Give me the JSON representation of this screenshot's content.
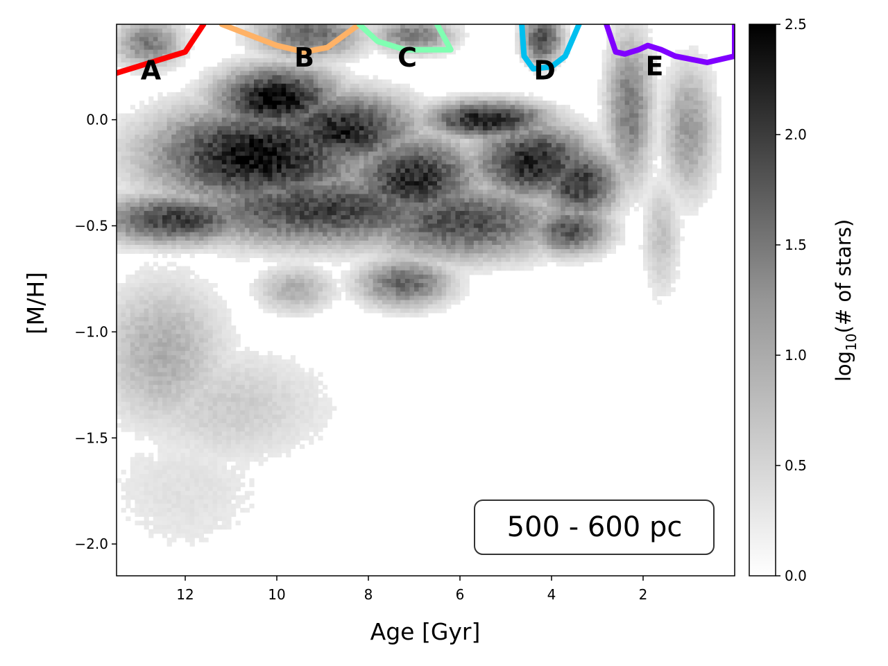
{
  "chart_data": {
    "type": "heatmap",
    "xlabel": "Age [Gyr]",
    "ylabel": "[M/H]",
    "xlim": [
      13.5,
      0.0
    ],
    "ylim": [
      -2.15,
      0.45
    ],
    "x_inverted": true,
    "xticks": [
      12,
      10,
      8,
      6,
      4,
      2
    ],
    "xtick_labels": [
      "12",
      "10",
      "8",
      "6",
      "4",
      "2"
    ],
    "yticks": [
      0.0,
      -0.5,
      -1.0,
      -1.5,
      -2.0
    ],
    "ytick_labels": [
      "0.0",
      "−0.5",
      "−1.0",
      "−1.5",
      "−2.0"
    ],
    "colorbar": {
      "label_main": "log",
      "label_sub": "10",
      "label_rest": "(# of stars)",
      "range": [
        0.0,
        2.5
      ],
      "ticks": [
        0.0,
        0.5,
        1.0,
        1.5,
        2.0,
        2.5
      ],
      "tick_labels": [
        "0.0",
        "0.5",
        "1.0",
        "1.5",
        "2.0",
        "2.5"
      ],
      "colormap": "Greys"
    },
    "annotation": "500 - 600 pc",
    "density_blobs": [
      {
        "age": 10.4,
        "mh": -0.17,
        "sx": 1.6,
        "sy": 0.16,
        "peak": 2.4
      },
      {
        "age": 10.0,
        "mh": 0.1,
        "sx": 0.9,
        "sy": 0.1,
        "peak": 2.5
      },
      {
        "age": 8.6,
        "mh": -0.05,
        "sx": 1.1,
        "sy": 0.12,
        "peak": 2.2
      },
      {
        "age": 7.0,
        "mh": -0.28,
        "sx": 1.0,
        "sy": 0.14,
        "peak": 2.1
      },
      {
        "age": 5.4,
        "mh": 0.0,
        "sx": 0.9,
        "sy": 0.06,
        "peak": 2.3
      },
      {
        "age": 4.4,
        "mh": -0.2,
        "sx": 0.9,
        "sy": 0.12,
        "peak": 2.2
      },
      {
        "age": 3.4,
        "mh": -0.3,
        "sx": 0.6,
        "sy": 0.12,
        "peak": 2.0
      },
      {
        "age": 12.2,
        "mh": -0.47,
        "sx": 1.2,
        "sy": 0.08,
        "peak": 1.9
      },
      {
        "age": 9.0,
        "mh": -0.42,
        "sx": 2.2,
        "sy": 0.12,
        "peak": 1.9
      },
      {
        "age": 6.0,
        "mh": -0.48,
        "sx": 1.5,
        "sy": 0.12,
        "peak": 1.8
      },
      {
        "age": 3.6,
        "mh": -0.52,
        "sx": 0.6,
        "sy": 0.08,
        "peak": 1.7
      },
      {
        "age": 7.2,
        "mh": -0.77,
        "sx": 0.7,
        "sy": 0.08,
        "peak": 1.5
      },
      {
        "age": 9.6,
        "mh": -0.8,
        "sx": 0.6,
        "sy": 0.08,
        "peak": 0.8
      },
      {
        "age": 12.5,
        "mh": -1.1,
        "sx": 1.0,
        "sy": 0.25,
        "peak": 0.8
      },
      {
        "age": 11.0,
        "mh": -1.35,
        "sx": 1.6,
        "sy": 0.2,
        "peak": 0.5
      },
      {
        "age": 12.0,
        "mh": -1.75,
        "sx": 1.5,
        "sy": 0.25,
        "peak": 0.3
      },
      {
        "age": 2.3,
        "mh": 0.05,
        "sx": 0.35,
        "sy": 0.25,
        "peak": 1.3
      },
      {
        "age": 1.0,
        "mh": -0.05,
        "sx": 0.4,
        "sy": 0.22,
        "peak": 1.0
      },
      {
        "age": 9.3,
        "mh": 0.4,
        "sx": 0.8,
        "sy": 0.08,
        "peak": 1.5
      },
      {
        "age": 7.0,
        "mh": 0.4,
        "sx": 0.6,
        "sy": 0.06,
        "peak": 1.3
      },
      {
        "age": 4.2,
        "mh": 0.38,
        "sx": 0.3,
        "sy": 0.08,
        "peak": 1.8
      },
      {
        "age": 12.8,
        "mh": 0.36,
        "sx": 0.5,
        "sy": 0.08,
        "peak": 1.3
      },
      {
        "age": 1.6,
        "mh": -0.55,
        "sx": 0.3,
        "sy": 0.2,
        "peak": 0.6
      }
    ],
    "regions": [
      {
        "name": "A",
        "color": "#ff0000",
        "label_age": 12.75,
        "label_mh": 0.19,
        "path": [
          [
            13.5,
            0.22
          ],
          [
            12.0,
            0.32
          ],
          [
            11.6,
            0.45
          ]
        ]
      },
      {
        "name": "B",
        "color": "#ffb266",
        "label_age": 9.4,
        "label_mh": 0.25,
        "path": [
          [
            11.2,
            0.45
          ],
          [
            10.0,
            0.35
          ],
          [
            9.4,
            0.32
          ],
          [
            8.9,
            0.34
          ],
          [
            8.2,
            0.45
          ]
        ]
      },
      {
        "name": "C",
        "color": "#80ffb2",
        "label_age": 7.15,
        "label_mh": 0.25,
        "path": [
          [
            8.2,
            0.45
          ],
          [
            7.8,
            0.37
          ],
          [
            7.2,
            0.33
          ],
          [
            6.2,
            0.33
          ],
          [
            6.5,
            0.45
          ]
        ]
      },
      {
        "name": "D",
        "color": "#00bfef",
        "label_age": 4.15,
        "label_mh": 0.19,
        "path": [
          [
            4.65,
            0.45
          ],
          [
            4.6,
            0.3
          ],
          [
            4.4,
            0.24
          ],
          [
            4.0,
            0.25
          ],
          [
            3.7,
            0.3
          ],
          [
            3.4,
            0.45
          ]
        ]
      },
      {
        "name": "E",
        "color": "#8000ff",
        "label_age": 1.75,
        "label_mh": 0.21,
        "path": [
          [
            2.8,
            0.45
          ],
          [
            2.6,
            0.32
          ],
          [
            2.4,
            0.31
          ],
          [
            2.1,
            0.33
          ],
          [
            1.9,
            0.35
          ],
          [
            1.6,
            0.33
          ],
          [
            1.3,
            0.3
          ],
          [
            0.6,
            0.27
          ],
          [
            0.0,
            0.3
          ],
          [
            0.0,
            0.45
          ]
        ]
      }
    ]
  }
}
